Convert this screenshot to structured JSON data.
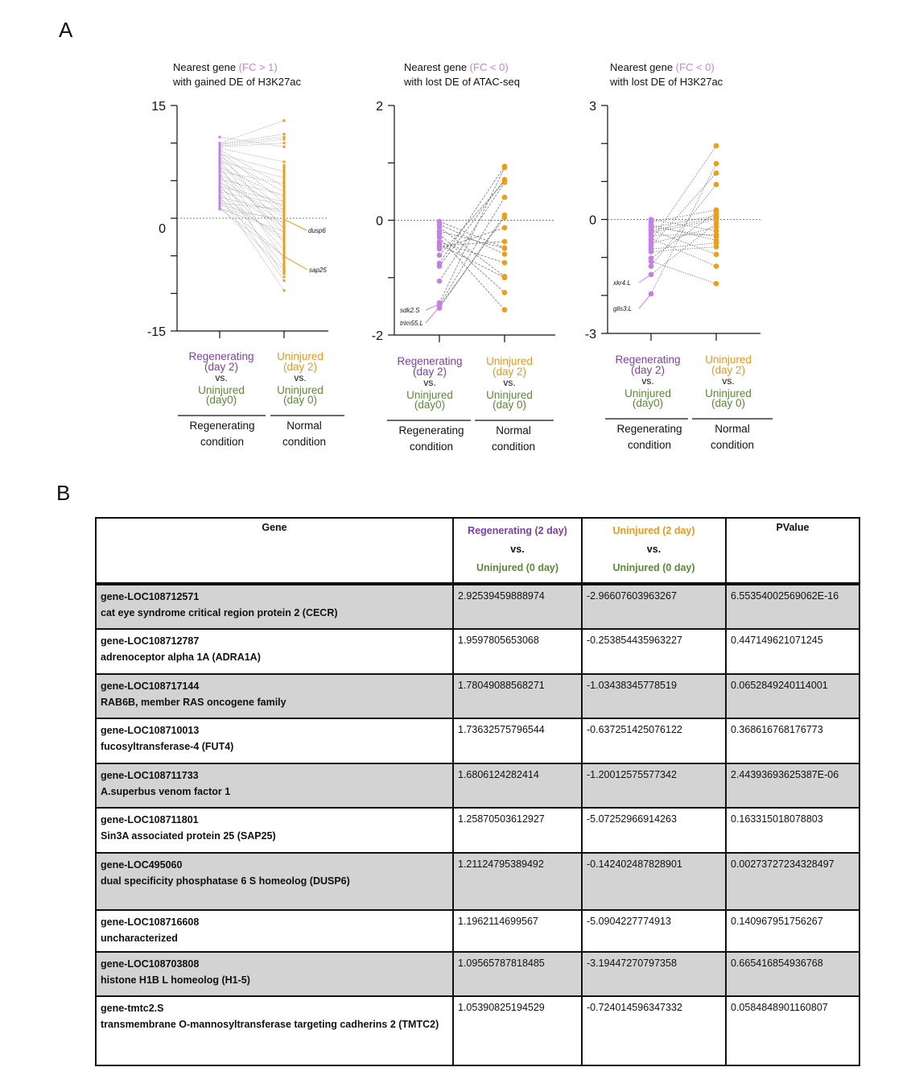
{
  "panel_labels": {
    "a": "A",
    "b": "B"
  },
  "colors": {
    "regenerating": "#c77fe8",
    "normal": "#f39c12",
    "purple_text": "#7b3fae",
    "orange_text": "#f0961a",
    "green_text": "#5b8a37",
    "line": "#9a9a9a"
  },
  "chart_data": [
    {
      "type": "line",
      "subtype": "paired-points",
      "title": {
        "prefix": "Nearest gene ",
        "highlight": "(FC > 1)",
        "line2": "with gained DE of H3K27ac"
      },
      "ylim": [
        -15,
        15
      ],
      "yticks": [
        15,
        10,
        5,
        0,
        -5,
        -10,
        -15
      ],
      "ytick_labels": [
        "15",
        "0",
        "-15"
      ],
      "zero_line": true,
      "x_groups": [
        {
          "top": "Regenerating",
          "top2": "(day 2)",
          "vs": "vs.",
          "bottom": "Uninjured",
          "bottom2": "(day0)",
          "condition": [
            "Regenerating",
            "condition"
          ]
        },
        {
          "top": "Uninjured",
          "top2": "(day 2)",
          "vs": "vs.",
          "bottom": "Uninjured",
          "bottom2": "(day 0)",
          "condition": [
            "Normal",
            "condition"
          ]
        }
      ],
      "pairs": [
        [
          10.8,
          9.5
        ],
        [
          10,
          13
        ],
        [
          9.9,
          11.2
        ],
        [
          9.8,
          10.8
        ],
        [
          9.6,
          10.5
        ],
        [
          9.5,
          10
        ],
        [
          9.3,
          7.5
        ],
        [
          9.1,
          4.2
        ],
        [
          8.9,
          2.1
        ],
        [
          8.7,
          -1.5
        ],
        [
          8.5,
          6.2
        ],
        [
          8.2,
          3.5
        ],
        [
          8,
          1
        ],
        [
          7.8,
          -3.2
        ],
        [
          7.5,
          5.4
        ],
        [
          7.2,
          0.5
        ],
        [
          7,
          -5.5
        ],
        [
          6.8,
          2.8
        ],
        [
          6.5,
          -2
        ],
        [
          6.2,
          4.6
        ],
        [
          6,
          -7.8
        ],
        [
          5.8,
          1.5
        ],
        [
          5.5,
          -0.8
        ],
        [
          5.2,
          3.1
        ],
        [
          5,
          -4.2
        ],
        [
          4.8,
          0.2
        ],
        [
          4.5,
          -6.5
        ],
        [
          4.2,
          2.2
        ],
        [
          4,
          -1.2
        ],
        [
          3.8,
          -8.3
        ],
        [
          3.5,
          1.8
        ],
        [
          3.2,
          -3
        ],
        [
          3,
          -9.6
        ],
        [
          2.8,
          0.8
        ],
        [
          2.5,
          -2.5
        ],
        [
          2.2,
          -5
        ],
        [
          2,
          1.2
        ],
        [
          1.8,
          -0.5
        ],
        [
          1.5,
          -6.9
        ],
        [
          1.3,
          -1.8
        ],
        [
          1.21,
          -0.14
        ],
        [
          1.26,
          -5.07
        ]
      ],
      "annotations": [
        {
          "gene": "dusp6",
          "group": 1,
          "value": -0.14
        },
        {
          "gene": "sap25",
          "group": 1,
          "value": -5.07
        }
      ]
    },
    {
      "type": "line",
      "subtype": "paired-points",
      "title": {
        "prefix": "Nearest gene ",
        "highlight": "(FC < 0)",
        "line2": "with lost DE of ATAC-seq"
      },
      "ylim": [
        -2,
        2
      ],
      "yticks": [
        2,
        1,
        0,
        -1,
        -2
      ],
      "ytick_labels": [
        "2",
        "0",
        "-2"
      ],
      "zero_line": true,
      "x_groups": [
        {
          "top": "Regenerating",
          "top2": "(day 2)",
          "vs": "vs.",
          "bottom": "Uninjured",
          "bottom2": "(day0)",
          "condition": [
            "Regenerating",
            "condition"
          ]
        },
        {
          "top": "Uninjured",
          "top2": "(day 2)",
          "vs": "vs.",
          "bottom": "Uninjured",
          "bottom2": "(day 0)",
          "condition": [
            "Normal",
            "condition"
          ]
        }
      ],
      "pairs": [
        [
          -0.02,
          -0.48
        ],
        [
          -0.07,
          -0.59
        ],
        [
          -0.12,
          -0.98
        ],
        [
          -0.19,
          -0.49
        ],
        [
          -0.24,
          -1.26
        ],
        [
          -0.38,
          -0.74
        ],
        [
          -0.42,
          -1.0
        ],
        [
          -0.45,
          -0.37
        ],
        [
          -0.61,
          0.68
        ],
        [
          -0.75,
          0.94
        ],
        [
          -0.8,
          0.71
        ],
        [
          -1.06,
          0.66
        ],
        [
          -0.3,
          -1.56
        ],
        [
          -0.5,
          -0.13
        ],
        [
          -1.44,
          0.92
        ],
        [
          -1.48,
          0.4
        ],
        [
          -1.53,
          0.09
        ],
        [
          -1.5,
          0.05
        ]
      ],
      "annotations": [
        {
          "gene": "sdk2.S",
          "group": 0,
          "value": -1.46
        },
        {
          "gene": "trim55.L",
          "group": 0,
          "value": -1.51
        }
      ]
    },
    {
      "type": "line",
      "subtype": "paired-points",
      "title": {
        "prefix": "Nearest gene ",
        "highlight": "(FC < 0)",
        "line2": "with lost DE of H3K27ac"
      },
      "ylim": [
        -3,
        3
      ],
      "yticks": [
        3,
        2,
        1,
        0,
        -1,
        -2,
        -3
      ],
      "ytick_labels": [
        "3",
        "0",
        "-3"
      ],
      "zero_line": true,
      "x_groups": [
        {
          "top": "Regenerating",
          "top2": "(day 2)",
          "vs": "vs.",
          "bottom": "Uninjured",
          "bottom2": "(day0)",
          "condition": [
            "Regenerating",
            "condition"
          ]
        },
        {
          "top": "Uninjured",
          "top2": "(day 2)",
          "vs": "vs.",
          "bottom": "Uninjured",
          "bottom2": "(day 0)",
          "condition": [
            "Normal",
            "condition"
          ]
        }
      ],
      "pairs": [
        [
          0,
          -0.3
        ],
        [
          -0.07,
          0.25
        ],
        [
          -0.14,
          -0.55
        ],
        [
          -0.21,
          0.1
        ],
        [
          -0.28,
          -0.92
        ],
        [
          -0.35,
          0.0
        ],
        [
          -0.42,
          -0.4
        ],
        [
          -0.56,
          1.94
        ],
        [
          -0.63,
          -0.2
        ],
        [
          -0.7,
          1.22
        ],
        [
          -0.78,
          -0.62
        ],
        [
          -1.02,
          0.18
        ],
        [
          -1.23,
          0.92
        ],
        [
          -1.1,
          -1.69
        ],
        [
          -0.85,
          -0.72
        ],
        [
          -0.5,
          -1.23
        ],
        [
          -0.3,
          0.05
        ],
        [
          -1.45,
          -0.1
        ],
        [
          -1.96,
          1.47
        ],
        [
          -0.2,
          -0.45
        ]
      ],
      "annotations": [
        {
          "gene": "xkr4.L",
          "group": 0,
          "value": -1.45
        },
        {
          "gene": "glis3.L",
          "group": 0,
          "value": -1.96
        }
      ]
    }
  ],
  "table": {
    "headers": {
      "gene": "Gene",
      "col2": {
        "top": "Regenerating (2 day)",
        "vs": "vs.",
        "bottom": "Uninjured (0 day)"
      },
      "col3": {
        "top": "Uninjured (2 day)",
        "vs": "vs.",
        "bottom": "Uninjured (0 day)"
      },
      "pvalue": "PValue"
    },
    "rows": [
      {
        "id": "gene-LOC108712571",
        "desc": "cat eye syndrome critical region protein 2 (CECR)",
        "regen": "2.92539459888974",
        "normal": "-2.96607603963267",
        "p": "6.55354002569062E-16"
      },
      {
        "id": "gene-LOC108712787",
        "desc": "adrenoceptor alpha 1A (ADRA1A)",
        "regen": "1.9597805653068",
        "normal": "-0.253854435963227",
        "p": "0.447149621071245"
      },
      {
        "id": "gene-LOC108717144",
        "desc": "RAB6B, member RAS oncogene family",
        "regen": "1.78049088568271",
        "normal": "-1.03438345778519",
        "p": "0.0652849240114001"
      },
      {
        "id": "gene-LOC108710013",
        "desc": "fucosyltransferase-4 (FUT4)",
        "regen": "1.73632575796544",
        "normal": "-0.637251425076122",
        "p": "0.368616768176773"
      },
      {
        "id": "gene-LOC108711733",
        "desc": "A.superbus venom factor 1",
        "regen": "1.6806124282414",
        "normal": "-1.20012575577342",
        "p": "2.44393693625387E-06"
      },
      {
        "id": "gene-LOC108711801",
        "desc": "Sin3A associated protein 25 (SAP25)",
        "regen": "1.25870503612927",
        "normal": "-5.07252966914263",
        "p": "0.163315018078803"
      },
      {
        "id": "gene-LOC495060",
        "desc": "dual specificity phosphatase 6 S homeolog (DUSP6)",
        "regen": "1.21124795389492",
        "normal": "-0.142402487828901",
        "p": "0.00273727234328497"
      },
      {
        "id": "gene-LOC108716608",
        "desc": "uncharacterized",
        "regen": "1.1962114699567",
        "normal": "-5.0904227774913",
        "p": "0.140967951756267"
      },
      {
        "id": "gene-LOC108703808",
        "desc": "histone H1B L homeolog (H1-5)",
        "regen": "1.09565787818485",
        "normal": "-3.19447270797358",
        "p": "0.665416854936768"
      },
      {
        "id": "gene-tmtc2.S",
        "desc": "transmembrane O-mannosyltransferase targeting cadherins 2 (TMTC2)",
        "regen": "1.05390825194529",
        "normal": "-0.724014596347332",
        "p": "0.0584848901160807"
      }
    ]
  }
}
